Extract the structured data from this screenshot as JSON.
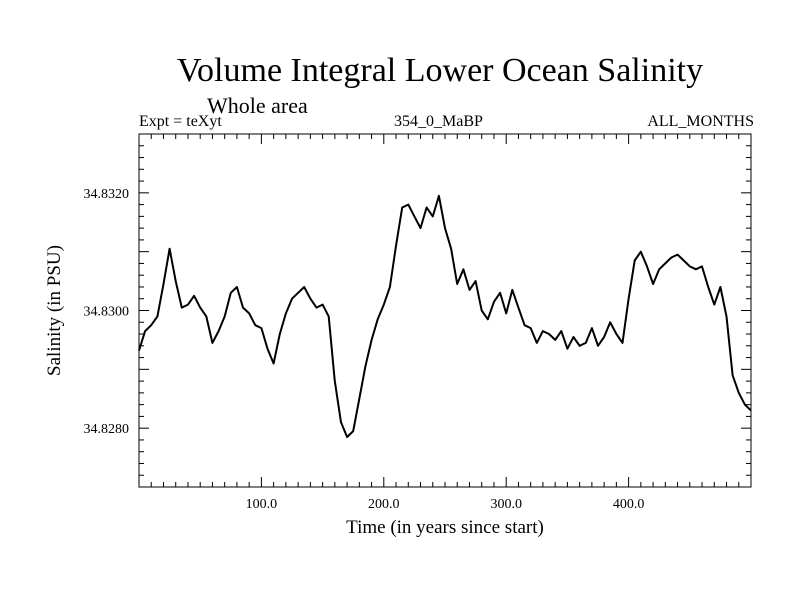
{
  "chart_data": {
    "type": "line",
    "title": "Volume Integral Lower Ocean Salinity",
    "subtitle": "Whole area",
    "header_left": "Expt = teXyt",
    "header_center": "354_0_MaBP",
    "header_right": "ALL_MONTHS",
    "xlabel": "Time (in years since start)",
    "ylabel": "Salinity (in PSU)",
    "xlim": [
      0,
      500
    ],
    "ylim": [
      34.827,
      34.833
    ],
    "x_ticks": [
      100,
      200,
      300,
      400
    ],
    "x_tick_labels": [
      "100.0",
      "200.0",
      "300.0",
      "400.0"
    ],
    "y_ticks": [
      34.828,
      34.83,
      34.832
    ],
    "y_tick_labels": [
      "34.8280",
      "34.8300",
      "34.8320"
    ],
    "series": [
      {
        "color": "#000000",
        "x": [
          0,
          5,
          10,
          15,
          20,
          25,
          30,
          35,
          40,
          45,
          50,
          55,
          60,
          65,
          70,
          75,
          80,
          85,
          90,
          95,
          100,
          105,
          110,
          115,
          120,
          125,
          130,
          135,
          140,
          145,
          150,
          155,
          160,
          165,
          170,
          175,
          180,
          185,
          190,
          195,
          200,
          205,
          210,
          215,
          220,
          225,
          230,
          235,
          240,
          245,
          250,
          255,
          260,
          265,
          270,
          275,
          280,
          285,
          290,
          295,
          300,
          305,
          310,
          315,
          320,
          325,
          330,
          335,
          340,
          345,
          350,
          355,
          360,
          365,
          370,
          375,
          380,
          385,
          390,
          395,
          400,
          405,
          410,
          415,
          420,
          425,
          430,
          435,
          440,
          445,
          450,
          455,
          460,
          465,
          470,
          475,
          480,
          485,
          490,
          495,
          500
        ],
        "y": [
          34.82932,
          34.82965,
          34.82975,
          34.8299,
          34.83045,
          34.83105,
          34.8305,
          34.83005,
          34.8301,
          34.83025,
          34.83005,
          34.8299,
          34.82945,
          34.82965,
          34.8299,
          34.8303,
          34.8304,
          34.83005,
          34.82995,
          34.82975,
          34.8297,
          34.82935,
          34.8291,
          34.8296,
          34.82995,
          34.8302,
          34.8303,
          34.8304,
          34.8302,
          34.83005,
          34.8301,
          34.8299,
          34.8288,
          34.8281,
          34.82785,
          34.82795,
          34.8285,
          34.82905,
          34.8295,
          34.82985,
          34.8301,
          34.8304,
          34.8311,
          34.83175,
          34.8318,
          34.8316,
          34.8314,
          34.83175,
          34.8316,
          34.83195,
          34.8314,
          34.83105,
          34.83045,
          34.8307,
          34.83035,
          34.8305,
          34.83,
          34.82985,
          34.83015,
          34.8303,
          34.82995,
          34.83035,
          34.83005,
          34.82975,
          34.8297,
          34.82945,
          34.82965,
          34.8296,
          34.8295,
          34.82965,
          34.82935,
          34.82955,
          34.8294,
          34.82945,
          34.8297,
          34.8294,
          34.82955,
          34.8298,
          34.8296,
          34.82945,
          34.8302,
          34.83085,
          34.831,
          34.83075,
          34.83045,
          34.8307,
          34.8308,
          34.8309,
          34.83095,
          34.83085,
          34.83075,
          34.8307,
          34.83075,
          34.8304,
          34.8301,
          34.8304,
          34.8299,
          34.8289,
          34.8286,
          34.8284,
          34.8283
        ]
      }
    ]
  }
}
